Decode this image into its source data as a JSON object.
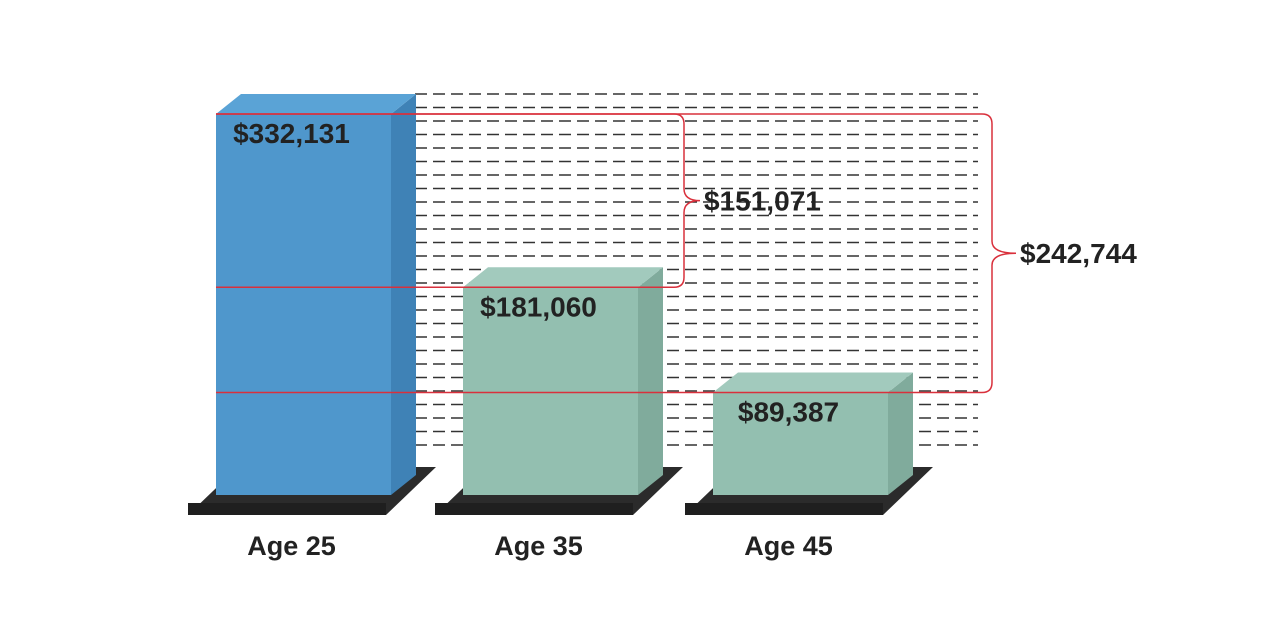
{
  "chart_data": {
    "type": "bar",
    "categories": [
      "Age 25",
      "Age 35",
      "Age 45"
    ],
    "values": [
      332131,
      181060,
      89387
    ],
    "value_labels": [
      "$332,131",
      "$181,060",
      "$89,387"
    ],
    "differences": [
      {
        "from": "Age 25",
        "to": "Age 35",
        "value": 151071,
        "label": "$151,071"
      },
      {
        "from": "Age 25",
        "to": "Age 45",
        "value": 242744,
        "label": "$242,744"
      }
    ],
    "title": "",
    "xlabel": "",
    "ylabel": "",
    "ylim": [
      0,
      360000
    ],
    "grid": "dashed horizontal lines",
    "legend": "none"
  },
  "colors": {
    "bar_age25_front": "#4f97cc",
    "bar_age25_side": "#3f82b6",
    "bar_age25_top": "#5aa3d6",
    "bar_green_front": "#93bfb0",
    "bar_green_side": "#80ab9c",
    "bar_green_top": "#a2cabd",
    "base": "#2b2b2b",
    "bracket": "#d9303c",
    "grid": "#333333",
    "text": "#222222"
  }
}
